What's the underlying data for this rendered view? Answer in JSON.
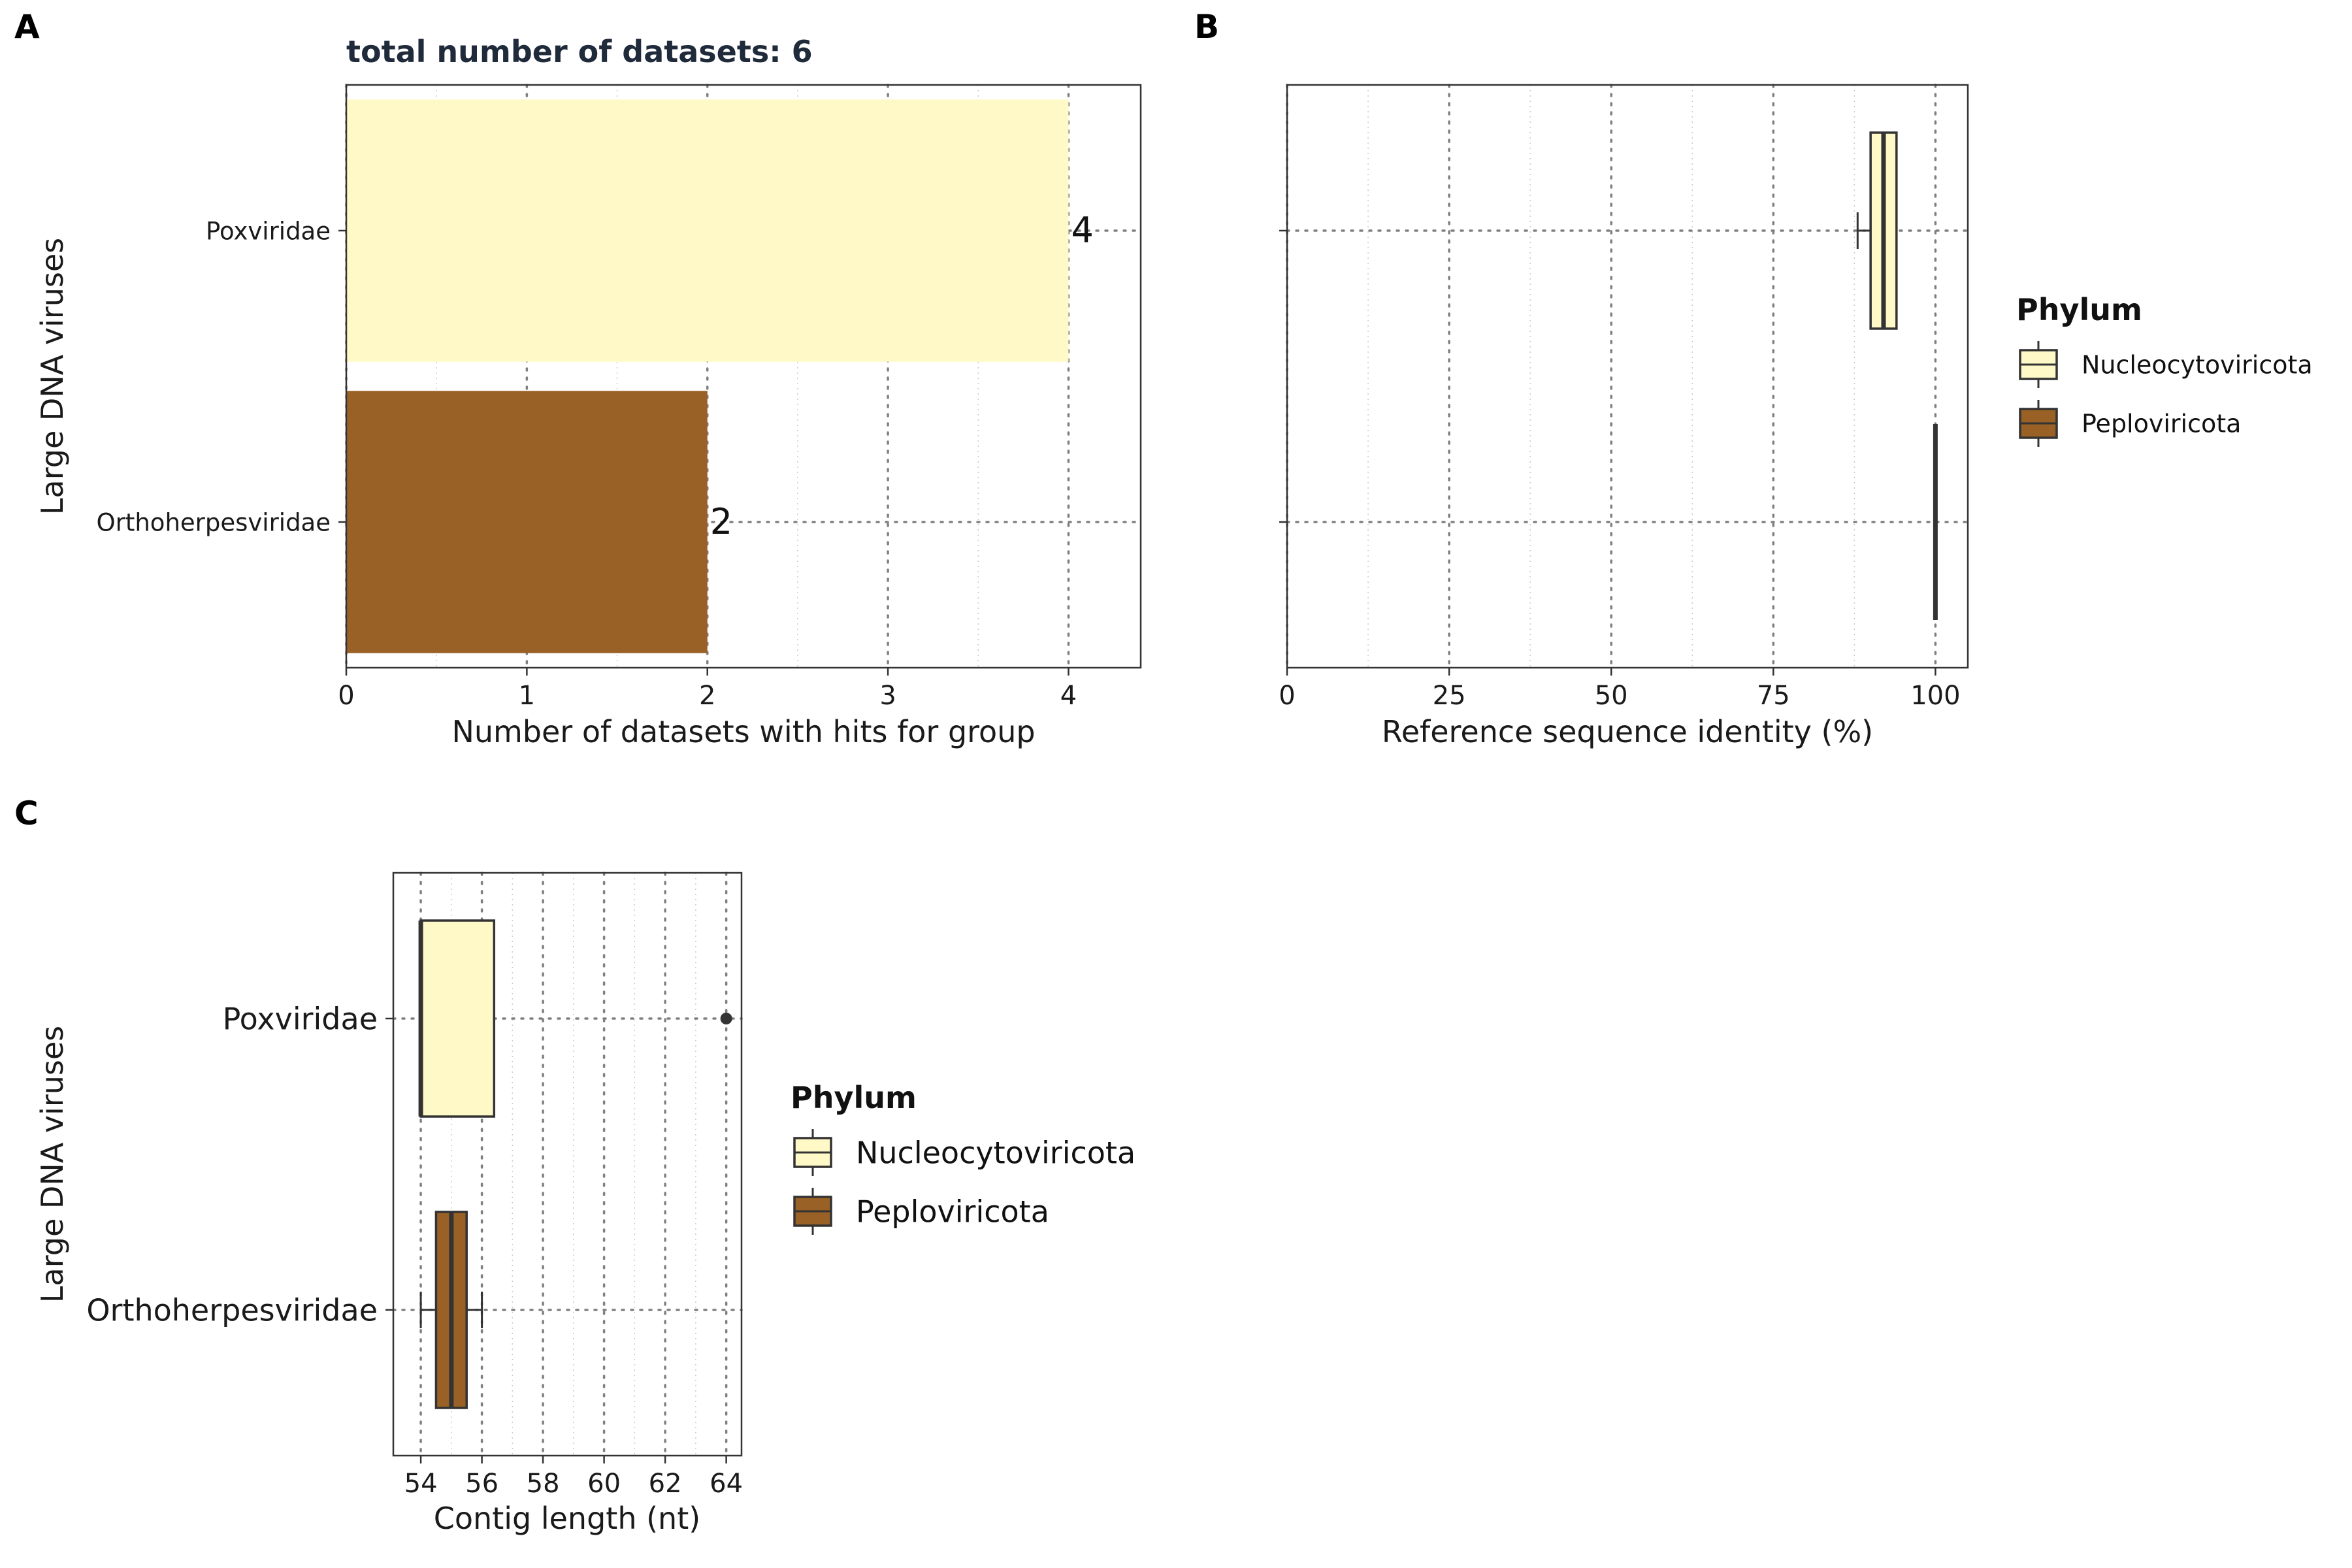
{
  "chart_data": [
    {
      "panel": "A",
      "type": "bar",
      "orientation": "horizontal",
      "title": "total number of datasets: 6",
      "xlabel": "Number of datasets with hits for group",
      "ylabel": "Large DNA viruses",
      "categories": [
        "Orthoherpesviridae",
        "Poxviridae"
      ],
      "values": [
        2,
        4
      ],
      "value_labels": [
        "2",
        "4"
      ],
      "phylum": [
        "Peploviricota",
        "Nucleocytoviricota"
      ],
      "xlim": [
        0,
        4.4
      ],
      "xticks": [
        "0",
        "1",
        "2",
        "3",
        "4"
      ],
      "grid": true
    },
    {
      "panel": "B",
      "type": "box",
      "orientation": "horizontal",
      "xlabel": "Reference sequence identity (%)",
      "categories": [
        "Orthoherpesviridae",
        "Poxviridae"
      ],
      "xlim": [
        0,
        105
      ],
      "xticks": [
        "0",
        "25",
        "50",
        "75",
        "100"
      ],
      "grid": true,
      "boxes": [
        {
          "category": "Orthoherpesviridae",
          "phylum": "Peploviricota",
          "whisker_low": 100,
          "q1": 100,
          "median": 100,
          "q3": 100,
          "whisker_high": 100
        },
        {
          "category": "Poxviridae",
          "phylum": "Nucleocytoviricota",
          "whisker_low": 88,
          "q1": 90,
          "median": 92,
          "q3": 94,
          "whisker_high": 94
        }
      ],
      "legend": {
        "title": "Phylum",
        "placement": "right",
        "items": [
          {
            "label": "Nucleocytoviricota",
            "color": "#FFF9C8"
          },
          {
            "label": "Peploviricota",
            "color": "#996125"
          }
        ]
      }
    },
    {
      "panel": "C",
      "type": "box",
      "orientation": "horizontal",
      "xlabel": "Contig length (nt)",
      "ylabel": "Large DNA viruses",
      "categories": [
        "Orthoherpesviridae",
        "Poxviridae"
      ],
      "xlim": [
        53.1,
        64.5
      ],
      "xticks": [
        "54",
        "56",
        "58",
        "60",
        "62",
        "64"
      ],
      "grid": true,
      "boxes": [
        {
          "category": "Orthoherpesviridae",
          "phylum": "Peploviricota",
          "whisker_low": 54,
          "q1": 54.5,
          "median": 55,
          "q3": 55.5,
          "whisker_high": 56,
          "outliers": []
        },
        {
          "category": "Poxviridae",
          "phylum": "Nucleocytoviricota",
          "whisker_low": 54,
          "q1": 54,
          "median": 54,
          "q3": 56.4,
          "whisker_high": 56.4,
          "outliers": [
            64
          ]
        }
      ],
      "legend": {
        "title": "Phylum",
        "placement": "right",
        "items": [
          {
            "label": "Nucleocytoviricota",
            "color": "#FFF9C8"
          },
          {
            "label": "Peploviricota",
            "color": "#996125"
          }
        ]
      }
    }
  ],
  "panel_labels": [
    "A",
    "B",
    "C"
  ],
  "colors": {
    "Peploviricota": "#996125",
    "Nucleocytoviricota": "#FFF9C8",
    "outline": "#333333",
    "grid": "#808080"
  }
}
